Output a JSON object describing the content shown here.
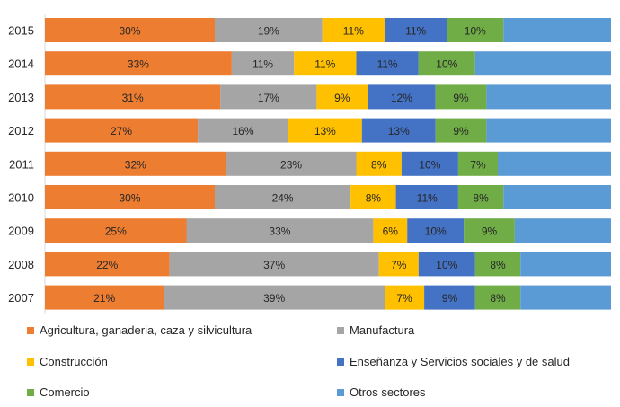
{
  "chart_data": {
    "type": "bar",
    "orientation": "horizontal",
    "stacked": true,
    "percent": true,
    "title": "",
    "xlabel": "",
    "ylabel": "",
    "xlim": [
      0,
      100
    ],
    "grid": false,
    "legend_position": "bottom",
    "categories": [
      "2015",
      "2014",
      "2013",
      "2012",
      "2011",
      "2010",
      "2009",
      "2008",
      "2007"
    ],
    "series": [
      {
        "name": "Agricultura, ganaderia, caza y silvicultura",
        "color": "#ED7D31",
        "values": [
          30,
          33,
          31,
          27,
          32,
          30,
          25,
          22,
          21
        ],
        "labels": [
          "30%",
          "33%",
          "31%",
          "27%",
          "32%",
          "30%",
          "25%",
          "22%",
          "21%"
        ]
      },
      {
        "name": "Manufactura",
        "color": "#A5A5A5",
        "values": [
          19,
          11,
          17,
          16,
          23,
          24,
          33,
          37,
          39
        ],
        "labels": [
          "19%",
          "11%",
          "17%",
          "16%",
          "23%",
          "24%",
          "33%",
          "37%",
          "39%"
        ]
      },
      {
        "name": "Construcción",
        "color": "#FFC000",
        "values": [
          11,
          11,
          9,
          13,
          8,
          8,
          6,
          7,
          7
        ],
        "labels": [
          "11%",
          "11%",
          "9%",
          "13%",
          "8%",
          "8%",
          "6%",
          "7%",
          "7%"
        ]
      },
      {
        "name": "Enseñanza  y Servicios sociales y de salud",
        "color": "#4472C4",
        "values": [
          11,
          11,
          12,
          13,
          10,
          11,
          10,
          10,
          9
        ],
        "labels": [
          "11%",
          "11%",
          "12%",
          "13%",
          "10%",
          "11%",
          "10%",
          "10%",
          "9%"
        ]
      },
      {
        "name": "Comercio",
        "color": "#70AD47",
        "values": [
          10,
          10,
          9,
          9,
          7,
          8,
          9,
          8,
          8
        ],
        "labels": [
          "10%",
          "10%",
          "9%",
          "9%",
          "7%",
          "8%",
          "9%",
          "8%",
          "8%"
        ]
      },
      {
        "name": "Otros sectores",
        "color": "#5B9BD5",
        "values": [
          19,
          24,
          22,
          22,
          20,
          19,
          17,
          16,
          16
        ],
        "labels": []
      }
    ]
  }
}
